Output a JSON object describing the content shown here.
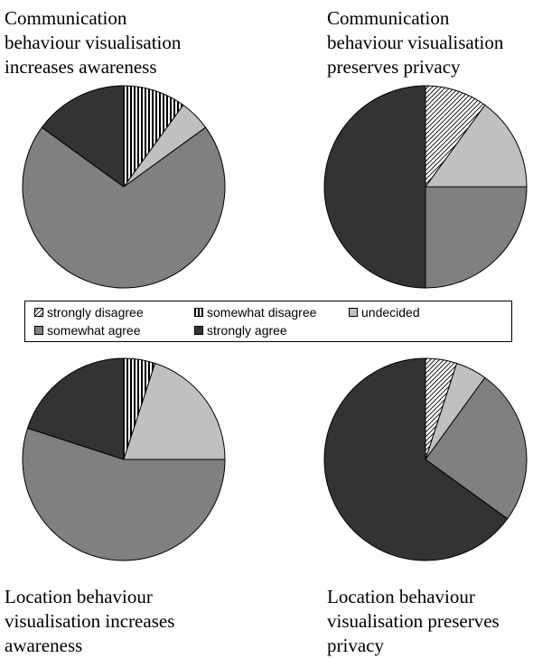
{
  "chart_data": [
    {
      "type": "pie",
      "title": "Communication\nbehaviour visualisation\nincreases awareness",
      "categories": [
        "strongly disagree",
        "somewhat disagree",
        "undecided",
        "somewhat agree",
        "strongly agree"
      ],
      "values": [
        0,
        10,
        5,
        70,
        15
      ]
    },
    {
      "type": "pie",
      "title": "Communication\nbehaviour visualisation\npreserves privacy",
      "categories": [
        "strongly disagree",
        "somewhat disagree",
        "undecided",
        "somewhat agree",
        "strongly agree"
      ],
      "values": [
        10,
        0,
        15,
        25,
        50
      ]
    },
    {
      "type": "pie",
      "title": "Location behaviour\nvisualisation increases\nawareness",
      "categories": [
        "strongly disagree",
        "somewhat disagree",
        "undecided",
        "somewhat agree",
        "strongly agree"
      ],
      "values": [
        0,
        5,
        20,
        55,
        20
      ]
    },
    {
      "type": "pie",
      "title": "Location behaviour\nvisualisation preserves\nprivacy",
      "categories": [
        "strongly disagree",
        "somewhat disagree",
        "undecided",
        "somewhat agree",
        "strongly agree"
      ],
      "values": [
        5,
        0,
        5,
        25,
        65
      ]
    }
  ],
  "legend": {
    "placement": "center",
    "items": [
      {
        "label": "strongly disagree",
        "pattern": "diagonal-hatch",
        "color": "#ffffff"
      },
      {
        "label": "somewhat disagree",
        "pattern": "vertical-stripes",
        "color": "#ffffff"
      },
      {
        "label": "undecided",
        "pattern": "solid",
        "color": "#c0c0c0"
      },
      {
        "label": "somewhat agree",
        "pattern": "solid",
        "color": "#808080"
      },
      {
        "label": "strongly agree",
        "pattern": "solid",
        "color": "#333333"
      }
    ]
  }
}
